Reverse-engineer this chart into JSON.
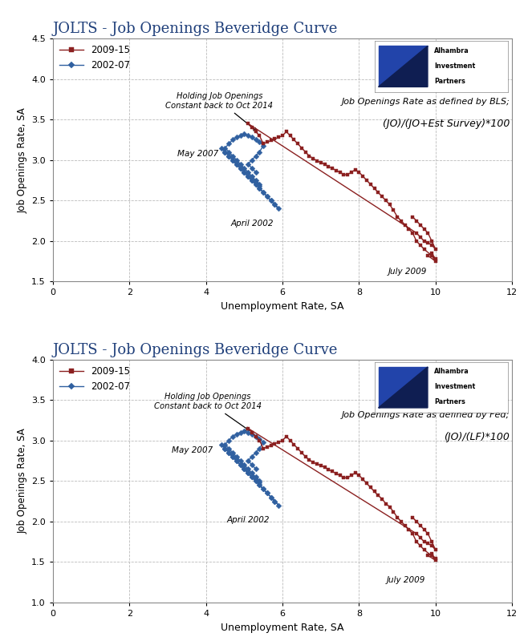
{
  "title": "JOLTS - Job Openings Beveridge Curve",
  "xlabel": "Unemployment Rate, SA",
  "ylabel": "Job Openings Rate, SA",
  "title_color": "#1F3F7A",
  "background_color": "#FFFFFF",
  "panel1_annotation_line1": "Job Openings Rate as defined by BLS;",
  "panel1_annotation_line2": "(JO)/(JO+Est Survey)*100",
  "panel2_annotation_line1": "Job Openings Rate as defined by Fed;",
  "panel2_annotation_line2": "(JO)/(LF)*100",
  "color_red": "#8B2020",
  "color_blue": "#3060A0",
  "marker_red": "s",
  "marker_blue": "D",
  "markersize": 3.5,
  "linewidth": 1.0,
  "panel1_ylim": [
    1.5,
    4.5
  ],
  "panel1_yticks": [
    1.5,
    2.0,
    2.5,
    3.0,
    3.5,
    4.0,
    4.5
  ],
  "panel2_ylim": [
    1.0,
    4.0
  ],
  "panel2_yticks": [
    1.0,
    1.5,
    2.0,
    2.5,
    3.0,
    3.5,
    4.0
  ],
  "xlim": [
    0.0,
    12.0
  ],
  "xticks": [
    0.0,
    2.0,
    4.0,
    6.0,
    8.0,
    10.0,
    12.0
  ],
  "u_blue": [
    4.5,
    4.6,
    4.7,
    4.8,
    4.9,
    5.0,
    5.1,
    5.2,
    5.3,
    5.4,
    5.5,
    5.6,
    5.7,
    5.8,
    5.9,
    5.8,
    5.7,
    5.6,
    5.5,
    5.4,
    5.3,
    5.2,
    5.1,
    5.0,
    4.9,
    4.8,
    4.7,
    4.6,
    4.5,
    4.4,
    4.5,
    4.6,
    4.7,
    4.8,
    4.9,
    5.0,
    5.1,
    5.2,
    5.3,
    5.4,
    5.4,
    5.3,
    5.2,
    5.1,
    5.0,
    4.9,
    4.8,
    4.7,
    4.6,
    4.5,
    4.6,
    4.7,
    4.8,
    4.9,
    5.0,
    5.1,
    5.2,
    5.3,
    5.4,
    5.5,
    5.4,
    5.3,
    5.2,
    5.1,
    5.2,
    5.3
  ],
  "jo_blue_bls": [
    3.1,
    3.05,
    3.0,
    2.95,
    2.9,
    2.85,
    2.8,
    2.75,
    2.7,
    2.65,
    2.6,
    2.55,
    2.5,
    2.45,
    2.4,
    2.45,
    2.5,
    2.55,
    2.6,
    2.65,
    2.7,
    2.75,
    2.8,
    2.85,
    2.9,
    2.95,
    3.0,
    3.05,
    3.1,
    3.15,
    3.1,
    3.05,
    3.0,
    2.95,
    2.9,
    2.85,
    2.8,
    2.75,
    2.72,
    2.68,
    2.7,
    2.75,
    2.8,
    2.85,
    2.9,
    2.95,
    3.0,
    3.05,
    3.1,
    3.15,
    3.2,
    3.25,
    3.28,
    3.3,
    3.32,
    3.3,
    3.28,
    3.25,
    3.22,
    3.18,
    3.1,
    3.05,
    3.0,
    2.95,
    2.9,
    2.85
  ],
  "jo_blue_fed": [
    2.9,
    2.85,
    2.8,
    2.75,
    2.7,
    2.65,
    2.6,
    2.55,
    2.5,
    2.45,
    2.4,
    2.35,
    2.3,
    2.25,
    2.2,
    2.25,
    2.3,
    2.35,
    2.4,
    2.45,
    2.5,
    2.55,
    2.6,
    2.65,
    2.7,
    2.75,
    2.8,
    2.85,
    2.9,
    2.95,
    2.9,
    2.85,
    2.8,
    2.75,
    2.7,
    2.65,
    2.6,
    2.55,
    2.52,
    2.48,
    2.5,
    2.55,
    2.6,
    2.65,
    2.7,
    2.75,
    2.8,
    2.85,
    2.9,
    2.95,
    3.0,
    3.05,
    3.08,
    3.1,
    3.12,
    3.1,
    3.08,
    3.05,
    3.02,
    2.98,
    2.9,
    2.85,
    2.8,
    2.75,
    2.7,
    2.65
  ],
  "u_red": [
    9.9,
    10.0,
    9.8,
    9.9,
    10.0,
    9.7,
    9.6,
    9.5,
    9.4,
    9.3,
    9.2,
    9.1,
    9.0,
    8.9,
    8.8,
    8.7,
    8.6,
    8.5,
    8.4,
    8.3,
    8.2,
    8.1,
    8.0,
    7.9,
    7.8,
    7.7,
    7.6,
    7.5,
    7.4,
    7.3,
    7.2,
    7.1,
    7.0,
    6.9,
    6.8,
    6.7,
    6.6,
    6.5,
    6.4,
    6.3,
    6.2,
    6.1,
    6.0,
    5.9,
    5.8,
    5.7,
    5.6,
    5.5,
    5.4,
    5.3,
    5.2,
    5.1,
    9.5,
    9.6,
    9.7,
    9.8,
    9.9,
    10.0,
    9.9,
    9.8,
    9.7,
    9.6,
    9.5,
    9.4
  ],
  "jo_red_bls": [
    1.82,
    1.75,
    1.82,
    1.85,
    1.78,
    1.9,
    1.95,
    2.0,
    2.1,
    2.15,
    2.2,
    2.25,
    2.3,
    2.38,
    2.45,
    2.5,
    2.55,
    2.6,
    2.65,
    2.7,
    2.75,
    2.8,
    2.85,
    2.88,
    2.85,
    2.82,
    2.82,
    2.85,
    2.87,
    2.9,
    2.92,
    2.95,
    2.97,
    2.99,
    3.02,
    3.05,
    3.1,
    3.15,
    3.2,
    3.25,
    3.3,
    3.35,
    3.3,
    3.28,
    3.26,
    3.24,
    3.22,
    3.2,
    3.3,
    3.35,
    3.4,
    3.45,
    2.1,
    2.05,
    2.0,
    1.98,
    1.95,
    1.9,
    2.0,
    2.1,
    2.15,
    2.2,
    2.25,
    2.3
  ],
  "jo_red_fed": [
    1.58,
    1.52,
    1.58,
    1.6,
    1.54,
    1.65,
    1.7,
    1.75,
    1.85,
    1.9,
    1.95,
    2.0,
    2.05,
    2.12,
    2.18,
    2.22,
    2.28,
    2.32,
    2.37,
    2.42,
    2.47,
    2.52,
    2.57,
    2.6,
    2.57,
    2.54,
    2.54,
    2.57,
    2.59,
    2.62,
    2.64,
    2.67,
    2.69,
    2.71,
    2.73,
    2.76,
    2.8,
    2.85,
    2.9,
    2.95,
    3.0,
    3.05,
    3.0,
    2.98,
    2.96,
    2.94,
    2.92,
    2.9,
    3.0,
    3.05,
    3.1,
    3.15,
    1.85,
    1.8,
    1.75,
    1.73,
    1.7,
    1.65,
    1.75,
    1.85,
    1.9,
    1.95,
    2.0,
    2.05
  ]
}
